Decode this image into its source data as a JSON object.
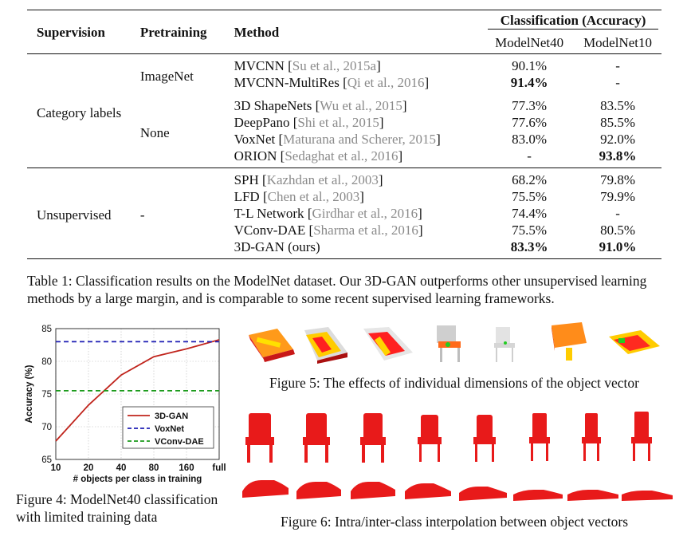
{
  "table": {
    "headers": {
      "supervision": "Supervision",
      "pretraining": "Pretraining",
      "method": "Method",
      "classification": "Classification (Accuracy)",
      "modelnet40": "ModelNet40",
      "modelnet10": "ModelNet10"
    },
    "groups": {
      "category_labels": "Category labels",
      "imagenet": "ImageNet",
      "none": "None",
      "unsupervised": "Unsupervised",
      "unsup_pretraining": "-"
    },
    "rows": [
      {
        "method": "MVCNN",
        "cite": "Su et al., 2015a",
        "m40": "90.1%",
        "m10": "-"
      },
      {
        "method": "MVCNN-MultiRes",
        "cite": "Qi et al., 2016",
        "m40": "91.4%",
        "m10": "-"
      },
      {
        "method": "3D ShapeNets",
        "cite": "Wu et al., 2015",
        "m40": "77.3%",
        "m10": "83.5%"
      },
      {
        "method": "DeepPano",
        "cite": "Shi et al., 2015",
        "m40": "77.6%",
        "m10": "85.5%"
      },
      {
        "method": "VoxNet",
        "cite": "Maturana and Scherer, 2015",
        "m40": "83.0%",
        "m10": "92.0%"
      },
      {
        "method": "ORION",
        "cite": "Sedaghat et al., 2016",
        "m40": "-",
        "m10": "93.8%"
      },
      {
        "method": "SPH",
        "cite": "Kazhdan et al., 2003",
        "m40": "68.2%",
        "m10": "79.8%"
      },
      {
        "method": "LFD",
        "cite": "Chen et al., 2003",
        "m40": "75.5%",
        "m10": "79.9%"
      },
      {
        "method": "T-L Network",
        "cite": "Girdhar et al., 2016",
        "m40": "74.4%",
        "m10": "-"
      },
      {
        "method": "VConv-DAE",
        "cite": "Sharma et al., 2016",
        "m40": "75.5%",
        "m10": "80.5%"
      },
      {
        "method": "3D-GAN (ours)",
        "cite": "",
        "m40": "83.3%",
        "m10": "91.0%"
      }
    ],
    "caption": "Table 1: Classification results on the ModelNet dataset. Our 3D-GAN outperforms other unsupervised learning methods by a large margin, and is comparable to some recent supervised learning frameworks."
  },
  "figures": {
    "fig4_caption": "Figure 4: ModelNet40 classification with limited training data",
    "fig5_caption": "Figure 5: The effects of individual dimensions of the object vector",
    "fig6_caption": "Figure 6: Intra/inter-class interpolation between object vectors"
  },
  "chart_data": {
    "type": "line",
    "x": [
      "10",
      "20",
      "40",
      "80",
      "160",
      "full"
    ],
    "xlabel": "# objects per class in training",
    "ylabel": "Accuracy (%)",
    "ylim": [
      65,
      85
    ],
    "yticks": [
      65,
      70,
      75,
      80,
      85
    ],
    "grid": true,
    "legend_position": "bottom-right",
    "series": [
      {
        "name": "3D-GAN",
        "values": [
          67.8,
          73.3,
          77.9,
          80.7,
          81.9,
          83.3
        ],
        "color": "#c0241c",
        "style": "solid"
      },
      {
        "name": "VoxNet",
        "values": [
          83.0,
          83.0,
          83.0,
          83.0,
          83.0,
          83.0
        ],
        "color": "#1f1fb4",
        "style": "dashed"
      },
      {
        "name": "VConv-DAE",
        "values": [
          75.5,
          75.5,
          75.5,
          75.5,
          75.5,
          75.5
        ],
        "color": "#1a9a1a",
        "style": "dashed"
      }
    ]
  }
}
